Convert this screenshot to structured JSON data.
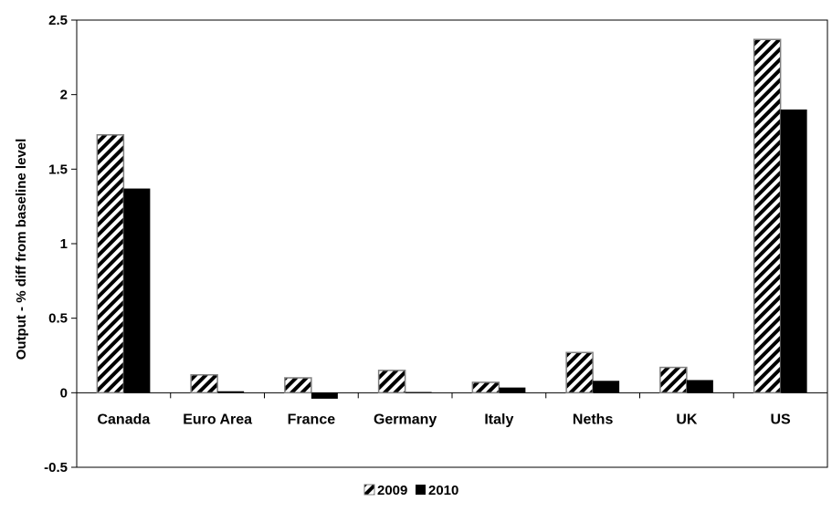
{
  "chart_data": {
    "type": "bar",
    "title": "",
    "xlabel": "",
    "ylabel": "Output - % diff from baseline level",
    "categories": [
      "Canada",
      "Euro Area",
      "France",
      "Germany",
      "Italy",
      "Neths",
      "UK",
      "US"
    ],
    "series": [
      {
        "name": "2009",
        "pattern": "hatched",
        "values": [
          1.73,
          0.12,
          0.1,
          0.15,
          0.07,
          0.27,
          0.17,
          2.37
        ]
      },
      {
        "name": "2010",
        "pattern": "solid",
        "values": [
          1.37,
          0.01,
          -0.04,
          0.005,
          0.035,
          0.08,
          0.085,
          1.9
        ]
      }
    ],
    "ylim": [
      -0.5,
      2.5
    ],
    "yticks": [
      "-0.5",
      "0",
      "0.5",
      "1",
      "1.5",
      "2",
      "2.5"
    ],
    "grid": false,
    "legend_position": "bottom",
    "colors": {
      "solid": "#000000",
      "hatch_stroke": "#000000",
      "hatch_fill": "#ffffff",
      "frame": "#000000"
    }
  }
}
